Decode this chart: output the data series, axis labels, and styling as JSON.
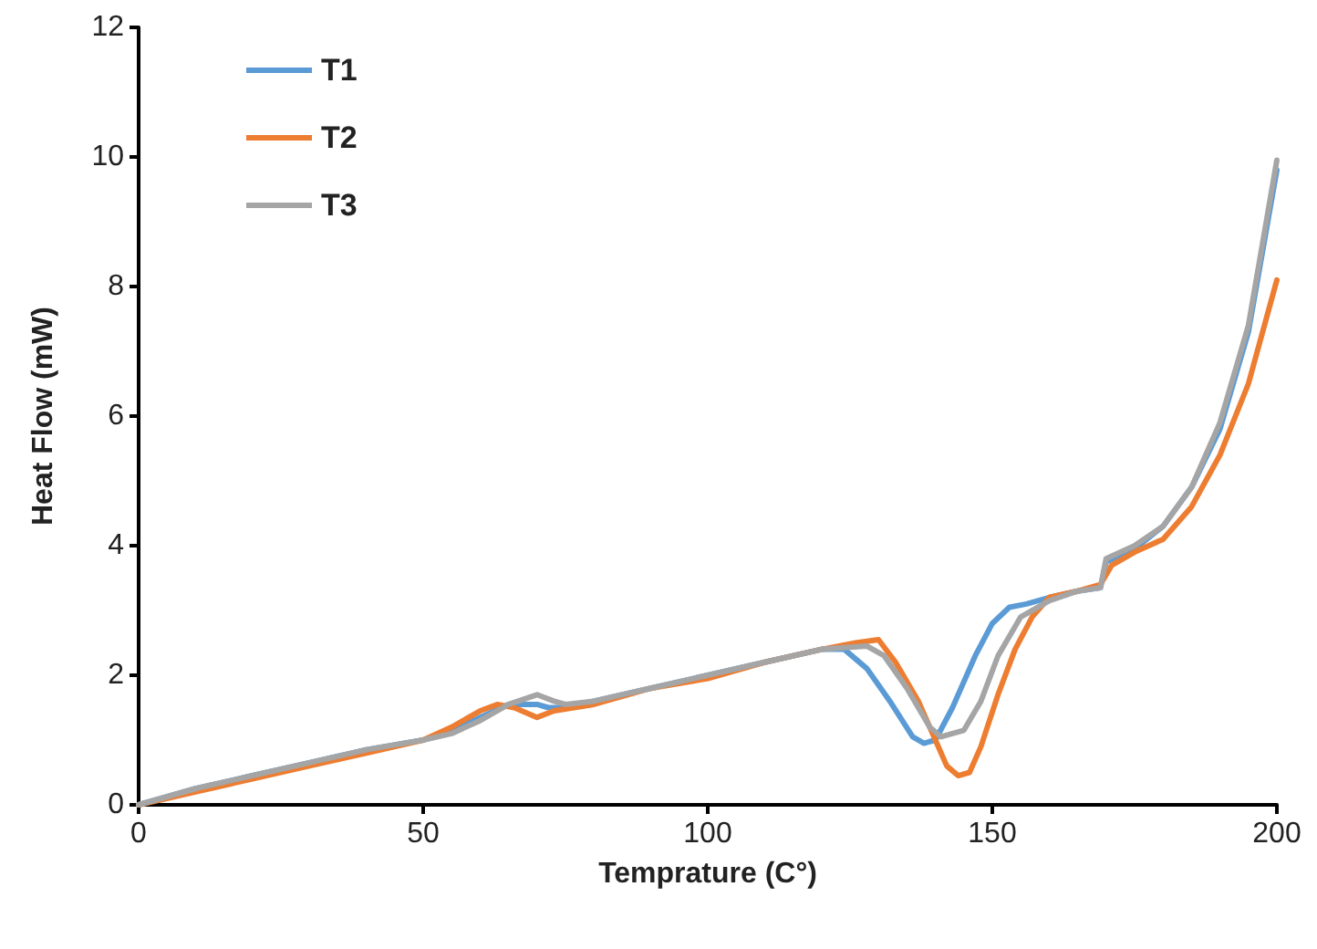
{
  "chart_data": {
    "type": "line",
    "xlabel": "Temprature (C°)",
    "ylabel": "Heat Flow (mW)",
    "xlim": [
      0,
      200
    ],
    "xticks": [
      0,
      50,
      100,
      150,
      200
    ],
    "ylim": [
      0,
      12
    ],
    "yticks": [
      0,
      2,
      4,
      6,
      8,
      10,
      12
    ],
    "grid": false,
    "legend": "top left",
    "marker": "none",
    "line_style": "solid",
    "series": [
      {
        "name": "T1",
        "color": "#5b9bd5",
        "x": [
          0,
          10,
          20,
          30,
          40,
          50,
          55,
          60,
          65,
          70,
          72,
          75,
          80,
          90,
          100,
          110,
          120,
          124,
          128,
          132,
          136,
          138,
          140,
          143,
          147,
          150,
          153,
          156,
          160,
          165,
          169,
          170,
          175,
          180,
          185,
          190,
          195,
          200
        ],
        "values": [
          0,
          0.25,
          0.45,
          0.65,
          0.85,
          1.0,
          1.15,
          1.35,
          1.55,
          1.55,
          1.5,
          1.5,
          1.6,
          1.8,
          2.0,
          2.2,
          2.4,
          2.4,
          2.1,
          1.6,
          1.05,
          0.95,
          1.0,
          1.5,
          2.3,
          2.8,
          3.05,
          3.1,
          3.2,
          3.3,
          3.35,
          3.75,
          3.95,
          4.3,
          4.9,
          5.8,
          7.3,
          9.8
        ]
      },
      {
        "name": "T2",
        "color": "#ed7d31",
        "x": [
          0,
          10,
          20,
          30,
          40,
          50,
          55,
          60,
          63,
          66,
          70,
          73,
          80,
          90,
          100,
          110,
          120,
          126,
          130,
          133,
          137,
          140,
          142,
          144,
          146,
          148,
          151,
          154,
          157,
          160,
          165,
          169,
          171,
          175,
          180,
          185,
          190,
          195,
          200
        ],
        "values": [
          0,
          0.2,
          0.4,
          0.6,
          0.8,
          1.0,
          1.2,
          1.45,
          1.55,
          1.5,
          1.35,
          1.45,
          1.55,
          1.8,
          1.95,
          2.2,
          2.4,
          2.5,
          2.55,
          2.2,
          1.6,
          1.0,
          0.6,
          0.45,
          0.5,
          0.9,
          1.7,
          2.4,
          2.9,
          3.2,
          3.3,
          3.4,
          3.7,
          3.9,
          4.1,
          4.6,
          5.4,
          6.5,
          8.1
        ]
      },
      {
        "name": "T3",
        "color": "#a5a5a5",
        "x": [
          0,
          10,
          20,
          30,
          40,
          50,
          55,
          60,
          65,
          70,
          73,
          75,
          80,
          90,
          100,
          110,
          120,
          128,
          131,
          135,
          139,
          141,
          145,
          148,
          151,
          155,
          160,
          165,
          169,
          170,
          175,
          180,
          185,
          190,
          195,
          200
        ],
        "values": [
          0,
          0.25,
          0.45,
          0.65,
          0.85,
          1.0,
          1.1,
          1.3,
          1.55,
          1.7,
          1.6,
          1.55,
          1.6,
          1.8,
          2.0,
          2.2,
          2.4,
          2.45,
          2.3,
          1.8,
          1.2,
          1.05,
          1.15,
          1.6,
          2.3,
          2.9,
          3.15,
          3.3,
          3.35,
          3.8,
          4.0,
          4.3,
          4.9,
          5.9,
          7.4,
          9.95
        ]
      }
    ]
  }
}
